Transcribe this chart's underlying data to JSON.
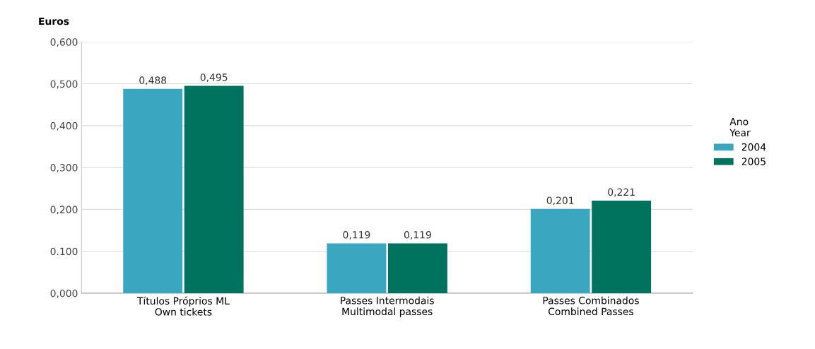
{
  "chart_data": {
    "type": "bar",
    "ylabel": "Euros",
    "legend_title": "Ano\nYear",
    "categories": [
      "Títulos Próprios ML\nOwn tickets",
      "Passes Intermodais\nMultimodal passes",
      "Passes Combinados\nCombined Passes"
    ],
    "series": [
      {
        "name": "2004",
        "color": "#3aa6bf",
        "values": [
          0.488,
          0.119,
          0.201
        ],
        "value_labels": [
          "0,488",
          "0,119",
          "0,201"
        ]
      },
      {
        "name": "2005",
        "color": "#00735f",
        "values": [
          0.495,
          0.119,
          0.221
        ],
        "value_labels": [
          "0,495",
          "0,119",
          "0,221"
        ]
      }
    ],
    "ylim": [
      0,
      0.6
    ],
    "yticks": [
      {
        "value": 0,
        "label": "0,000"
      },
      {
        "value": 0.1,
        "label": "0.100"
      },
      {
        "value": 0.2,
        "label": "0,200"
      },
      {
        "value": 0.3,
        "label": "0,300"
      },
      {
        "value": 0.4,
        "label": "0,400"
      },
      {
        "value": 0.5,
        "label": "0,500"
      },
      {
        "value": 0.6,
        "label": "0,600"
      }
    ],
    "grid": "y",
    "legend": "right"
  }
}
